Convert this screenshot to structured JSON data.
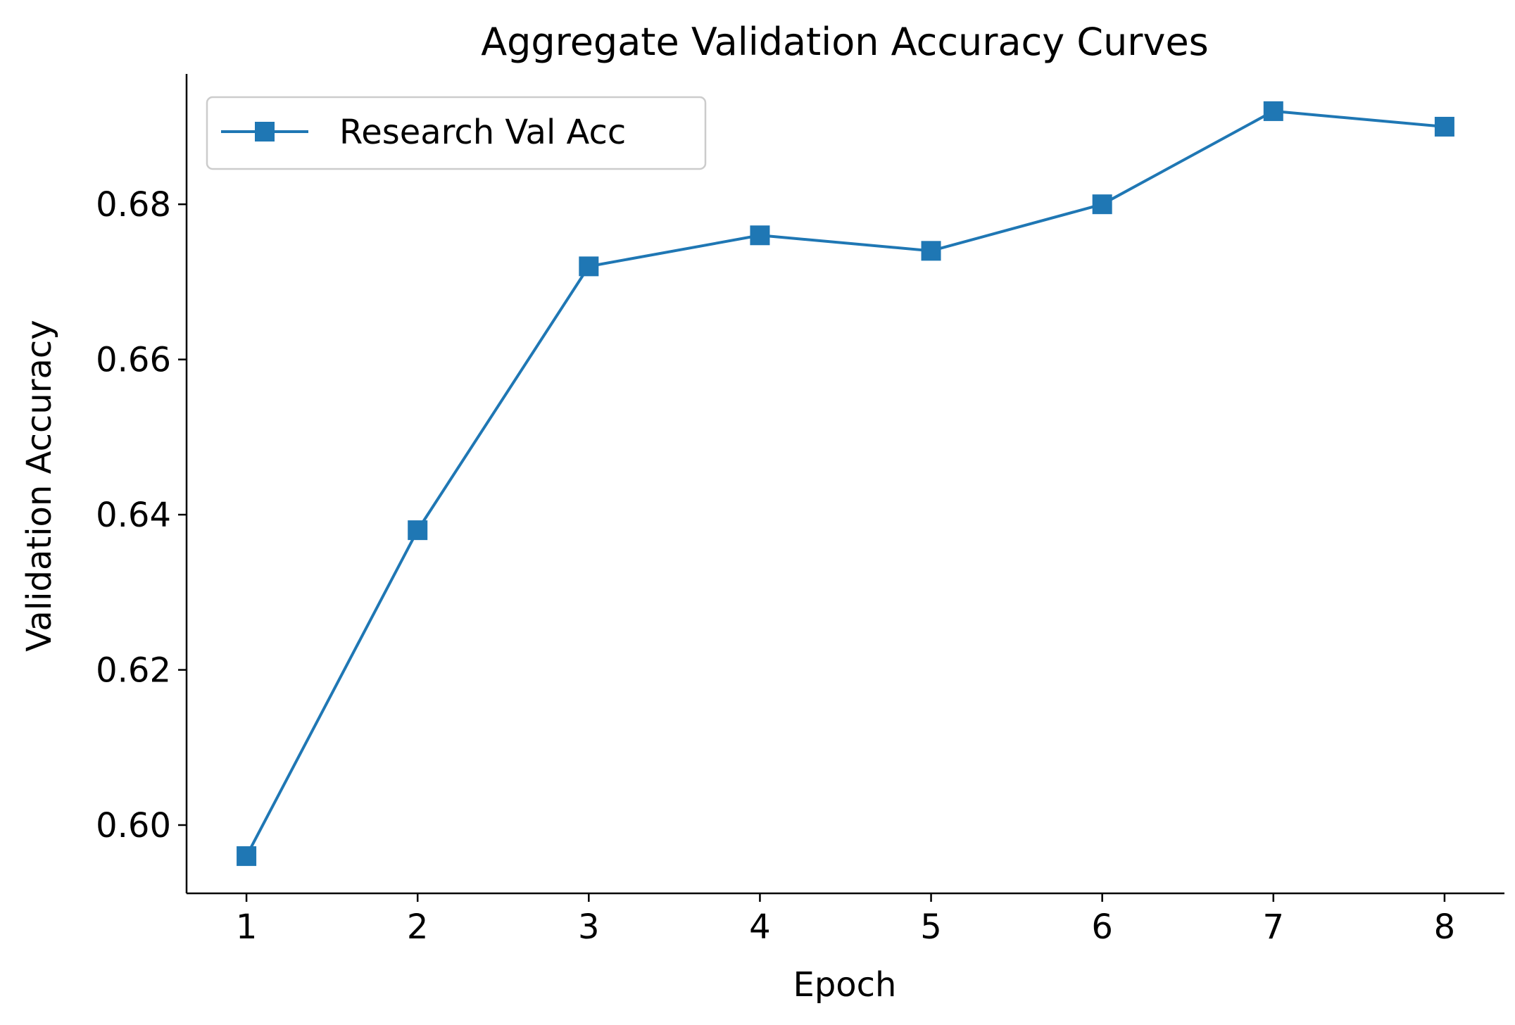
{
  "chart_data": {
    "type": "line",
    "title": "Aggregate Validation Accuracy Curves",
    "xlabel": "Epoch",
    "ylabel": "Validation Accuracy",
    "x": [
      1,
      2,
      3,
      4,
      5,
      6,
      7,
      8
    ],
    "xticks": [
      "1",
      "2",
      "3",
      "4",
      "5",
      "6",
      "7",
      "8"
    ],
    "yticks": [
      "0.60",
      "0.62",
      "0.64",
      "0.66",
      "0.68"
    ],
    "ytick_values": [
      0.6,
      0.62,
      0.64,
      0.66,
      0.68
    ],
    "xlim": [
      0.65,
      8.35
    ],
    "ylim": [
      0.5912,
      0.6968
    ],
    "grid": false,
    "legend_position": "top-left",
    "series": [
      {
        "name": "Research Val Acc",
        "values": [
          0.596,
          0.638,
          0.672,
          0.676,
          0.674,
          0.68,
          0.692,
          0.69
        ],
        "color": "#1f77b4",
        "marker": "square"
      }
    ]
  }
}
